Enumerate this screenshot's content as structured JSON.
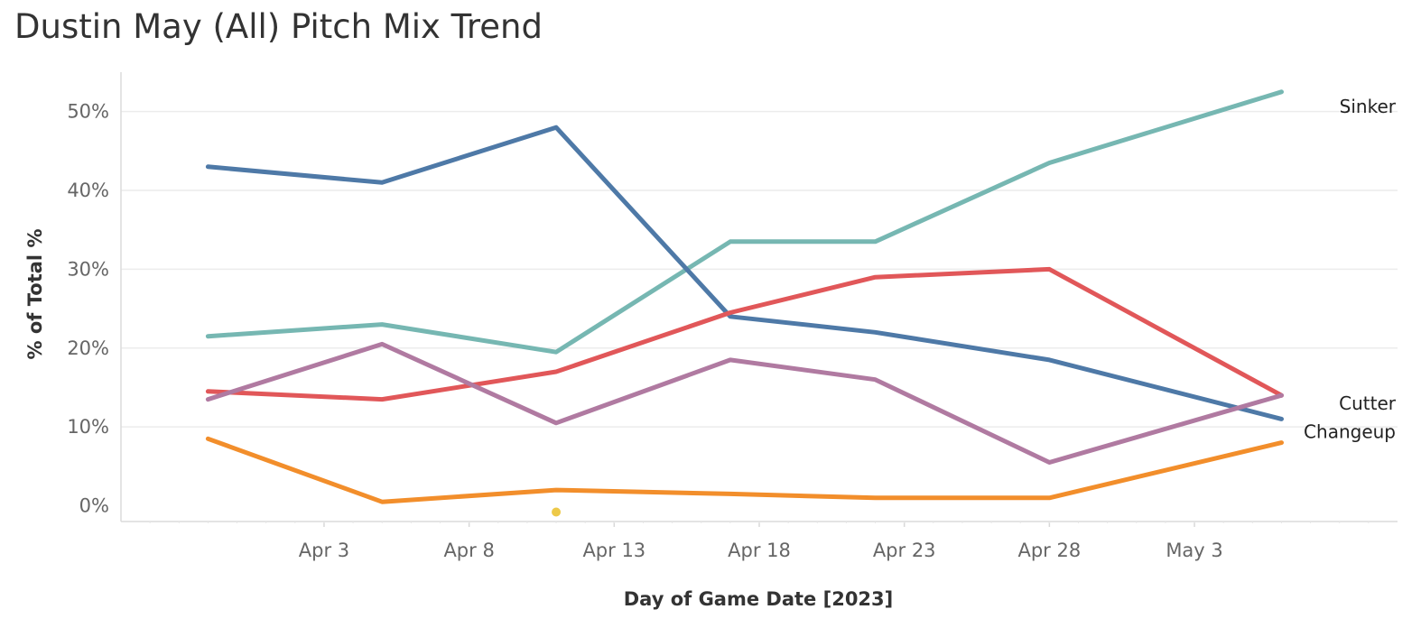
{
  "title": "Dustin May (All) Pitch Mix Trend",
  "chart_data": {
    "type": "line",
    "title": "Dustin May (All) Pitch Mix Trend",
    "xlabel": "Day of Game Date [2023]",
    "ylabel": "% of Total %",
    "x": [
      "2023-03-30",
      "2023-04-05",
      "2023-04-11",
      "2023-04-17",
      "2023-04-22",
      "2023-04-28",
      "2023-05-06"
    ],
    "xticks": [
      {
        "date": "2023-04-03",
        "label": "Apr 3"
      },
      {
        "date": "2023-04-08",
        "label": "Apr 8"
      },
      {
        "date": "2023-04-13",
        "label": "Apr 13"
      },
      {
        "date": "2023-04-18",
        "label": "Apr 18"
      },
      {
        "date": "2023-04-23",
        "label": "Apr 23"
      },
      {
        "date": "2023-04-28",
        "label": "Apr 28"
      },
      {
        "date": "2023-05-03",
        "label": "May 3"
      }
    ],
    "yticks": [
      {
        "value": 0,
        "label": "0%"
      },
      {
        "value": 10,
        "label": "10%"
      },
      {
        "value": 20,
        "label": "20%"
      },
      {
        "value": 30,
        "label": "30%"
      },
      {
        "value": 40,
        "label": "40%"
      },
      {
        "value": 50,
        "label": "50%"
      }
    ],
    "ylim": [
      -2,
      55
    ],
    "xlim": [
      "2023-03-27",
      "2023-05-10"
    ],
    "grid": true,
    "series": [
      {
        "key": "sinker",
        "name": "Sinker",
        "color": "#76b7b2",
        "values": [
          21.5,
          23,
          19.5,
          33.5,
          33.5,
          43.5,
          52.5
        ]
      },
      {
        "key": "blue",
        "color": "#4e79a7",
        "values": [
          43,
          41,
          48,
          24,
          22,
          18.5,
          11
        ]
      },
      {
        "key": "cutter",
        "name": "Cutter",
        "color": "#e15759",
        "values": [
          14.5,
          13.5,
          17,
          24.5,
          29,
          30,
          14
        ]
      },
      {
        "key": "purple",
        "color": "#b07aa1",
        "values": [
          13.5,
          20.5,
          10.5,
          18.5,
          16,
          5.5,
          14
        ]
      },
      {
        "key": "changeup",
        "name": "Changeup",
        "color": "#f28e2b",
        "values": [
          8.5,
          0.5,
          2,
          1.5,
          1,
          1,
          8
        ]
      }
    ],
    "points": [
      {
        "date": "2023-04-11",
        "value": 0,
        "color": "#edc948"
      }
    ]
  }
}
